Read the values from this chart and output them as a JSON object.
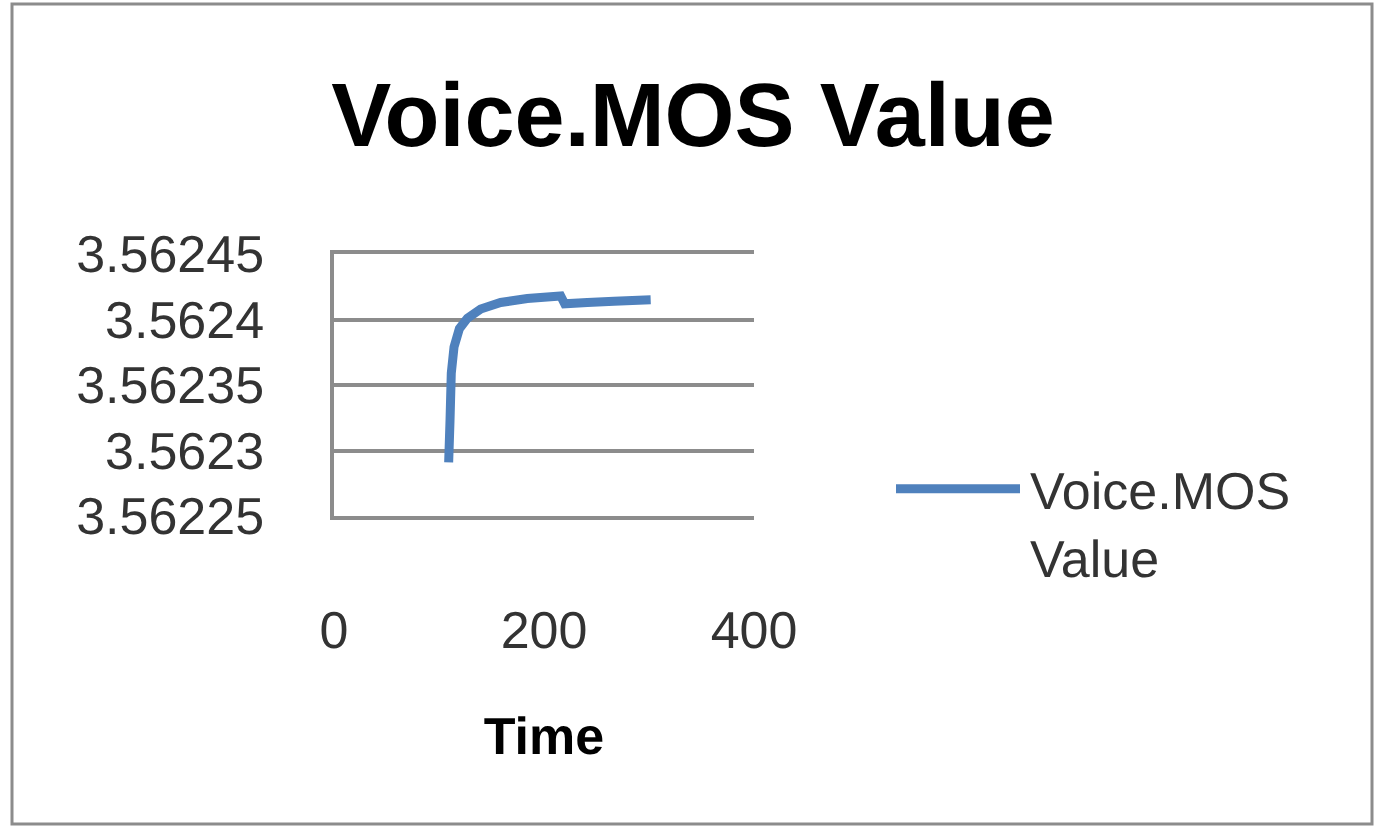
{
  "chart_data": {
    "type": "line",
    "title": "Voice.MOS Value",
    "xlabel": "Time",
    "series": [
      {
        "name": "Voice.MOS Value",
        "color": "#4f81bd",
        "x": [
          109.2,
          110.5,
          111.7,
          114.3,
          119.4,
          127,
          139.7,
          158.7,
          184.1,
          215.9,
          219.7,
          241.3,
          266.7,
          301.6
        ],
        "values": [
          3.562291,
          3.562323,
          3.562359,
          3.562379,
          3.562393,
          3.562401,
          3.562408,
          3.562413,
          3.562416,
          3.562418,
          3.562412,
          3.562413,
          3.562414,
          3.562415
        ]
      }
    ],
    "xlim": [
      0,
      400
    ],
    "xticks": [
      0,
      200,
      400
    ],
    "ylim": [
      3.56225,
      3.56245
    ],
    "yticks": [
      3.56225,
      3.5623,
      3.56235,
      3.5624,
      3.56245
    ],
    "grid": "y",
    "legend": "right",
    "marker": "none",
    "line_style": "solid"
  }
}
